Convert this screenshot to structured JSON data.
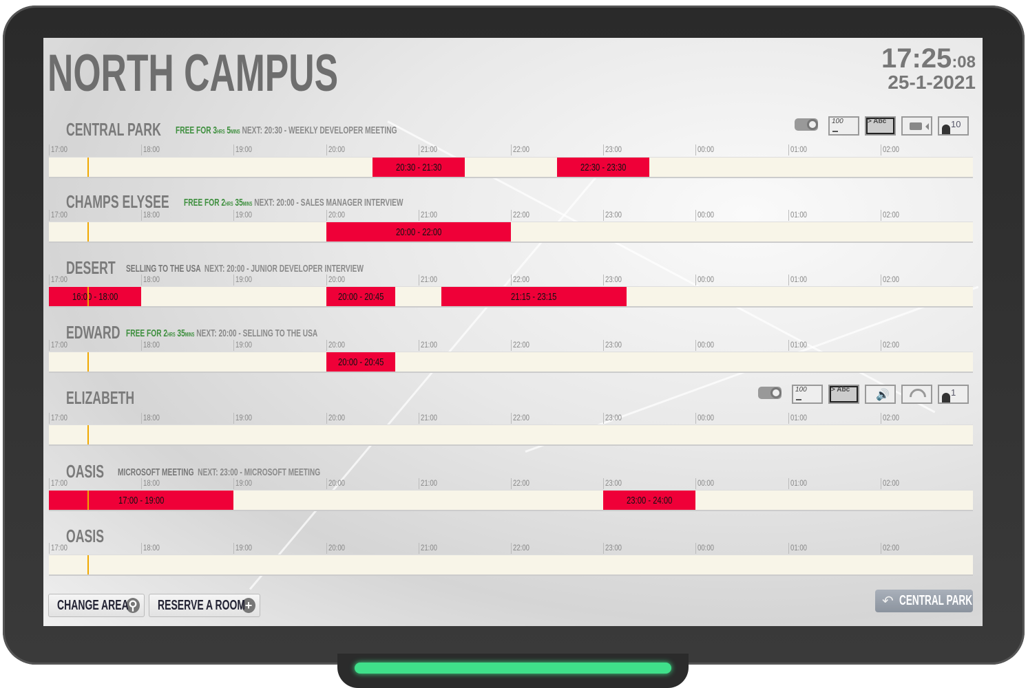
{
  "header": {
    "title": "NORTH CAMPUS",
    "time_hm": "17:25",
    "time_s": ":08",
    "date": "25-1-2021"
  },
  "timeline": {
    "start_hour": 17,
    "hours": 10,
    "now": "17:25",
    "ticks": [
      "17:00",
      "18:00",
      "19:00",
      "20:00",
      "21:00",
      "22:00",
      "23:00",
      "00:00",
      "01:00",
      "02:00"
    ]
  },
  "colors": {
    "booked": "#ef0038",
    "free_text": "#3e8f3e",
    "bar": "#f8f5e8",
    "now_line": "#f0a800"
  },
  "rooms": [
    {
      "name": "CENTRAL PARK",
      "status_free": true,
      "free_prefix": "FREE FOR ",
      "free_hrs": "3",
      "hrs_unit": "HRS",
      "free_mins": "5",
      "mins_unit": "MINS",
      "current": "",
      "next": "NEXT: 20:30 - WEEKLY DEVELOPER MEETING",
      "amenities": [
        {
          "icon": "projector-icon"
        },
        {
          "icon": "whiteboard-icon",
          "text": "100"
        },
        {
          "icon": "display-icon",
          "text": "> Abc"
        },
        {
          "icon": "video-camera-icon"
        },
        {
          "icon": "capacity-icon",
          "text": "10"
        }
      ],
      "events": [
        {
          "start": 20.5,
          "end": 21.5,
          "label": "20:30 - 21:30"
        },
        {
          "start": 22.5,
          "end": 23.5,
          "label": "22:30 - 23:30"
        }
      ]
    },
    {
      "name": "CHAMPS ELYSEE",
      "status_free": true,
      "free_prefix": "FREE FOR ",
      "free_hrs": "2",
      "hrs_unit": "HRS",
      "free_mins": "35",
      "mins_unit": "MINS",
      "current": "",
      "next": "NEXT: 20:00 - SALES MANAGER INTERVIEW",
      "amenities": [],
      "events": [
        {
          "start": 20,
          "end": 22,
          "label": "20:00 - 22:00"
        }
      ]
    },
    {
      "name": "DESERT",
      "status_free": false,
      "current": "SELLING TO THE USA",
      "next": "NEXT: 20:00 - JUNIOR DEVELOPER INTERVIEW",
      "amenities": [],
      "events": [
        {
          "start": 16,
          "end": 18,
          "label": "16:00 - 18:00"
        },
        {
          "start": 20,
          "end": 20.75,
          "label": "20:00 - 20:45"
        },
        {
          "start": 21.25,
          "end": 23.25,
          "label": "21:15 - 23:15"
        }
      ]
    },
    {
      "name": "EDWARD",
      "status_free": true,
      "free_prefix": "FREE FOR ",
      "free_hrs": "2",
      "hrs_unit": "HRS",
      "free_mins": "35",
      "mins_unit": "MINS",
      "current": "",
      "next": "NEXT: 20:00 - SELLING TO THE USA",
      "amenities": [],
      "events": [
        {
          "start": 20,
          "end": 20.75,
          "label": "20:00 - 20:45"
        }
      ]
    },
    {
      "name": "ELIZABETH",
      "status_free": false,
      "current": "",
      "next": "",
      "amenities": [
        {
          "icon": "projector-icon"
        },
        {
          "icon": "whiteboard-icon",
          "text": "100"
        },
        {
          "icon": "display-icon",
          "text": "> Abc"
        },
        {
          "icon": "speaker-icon"
        },
        {
          "icon": "wifi-icon"
        },
        {
          "icon": "capacity-icon",
          "text": "1"
        }
      ],
      "events": []
    },
    {
      "name": "OASIS",
      "status_free": false,
      "current": "MICROSOFT MEETING",
      "next": "NEXT: 23:00 - MICROSOFT MEETING",
      "amenities": [],
      "events": [
        {
          "start": 17,
          "end": 19,
          "label": "17:00 - 19:00"
        },
        {
          "start": 23,
          "end": 24,
          "label": "23:00 - 24:00"
        }
      ]
    },
    {
      "name": "OASIS",
      "status_free": false,
      "current": "",
      "next": "",
      "amenities": [],
      "events": []
    }
  ],
  "footer": {
    "change_area": "CHANGE AREA",
    "reserve_room": "RESERVE A ROOM",
    "back_label": "CENTRAL PARK"
  }
}
